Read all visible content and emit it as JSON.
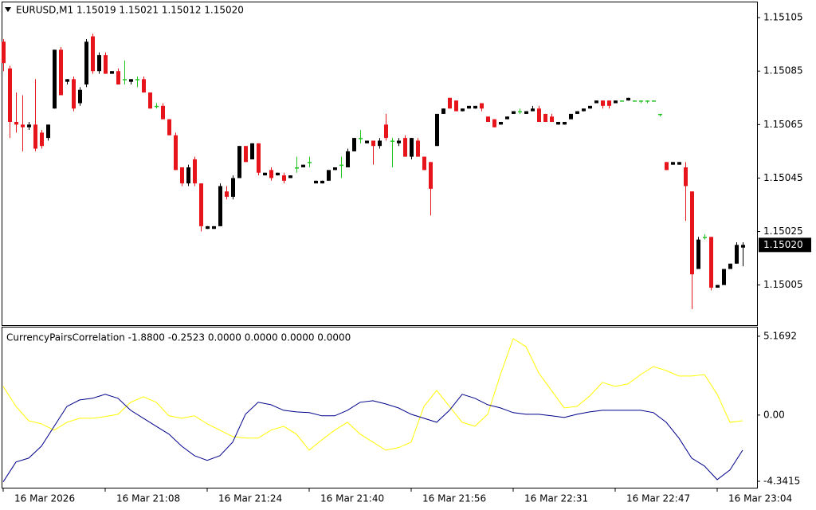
{
  "chart_data": [
    {
      "type": "candlestick",
      "title": "EURUSD,M1  1.15019 1.15021 1.15012 1.15020",
      "up_color": "#000000",
      "down_color": "#e8141c",
      "doji_color": "#22c322",
      "xlim": [
        -0.25,
        118.25
      ],
      "ylim": [
        1.1499,
        1.15111
      ],
      "yticks": [
        1.15105,
        1.15085,
        1.15065,
        1.15045,
        1.15025,
        1.15005
      ],
      "last_price": {
        "value": 1.1502,
        "label": "1.15020"
      },
      "open": [
        1.15096,
        1.15086,
        1.15066,
        1.15065,
        1.15064,
        1.15065,
        1.15062,
        1.1506,
        1.15071,
        1.15093,
        1.15081,
        1.15082,
        1.15073,
        1.1508,
        1.15098,
        1.15085,
        1.15091,
        1.15084,
        1.15085,
        1.15082,
        1.15081,
        1.15082,
        1.15082,
        1.15077,
        1.15072,
        1.15072,
        1.15067,
        1.15061,
        1.15049,
        1.15043,
        1.15052,
        1.15043,
        1.15026,
        1.15026,
        1.15027,
        1.1504,
        1.15038,
        1.15045,
        1.15057,
        1.15052,
        1.15058,
        1.15046,
        1.15048,
        1.15046,
        1.15046,
        1.15045,
        1.15049,
        1.15049,
        1.15051,
        1.15043,
        1.15043,
        1.15044,
        1.15048,
        1.1505,
        1.15049,
        1.15055,
        1.1506,
        1.15058,
        1.15059,
        1.15057,
        1.15065,
        1.15059,
        1.15058,
        1.1506,
        1.15053,
        1.15059,
        1.15053,
        1.15051,
        1.15057,
        1.15069,
        1.15075,
        1.15074,
        1.1507,
        1.15071,
        1.15071,
        1.15073,
        1.15068,
        1.15067,
        1.15065,
        1.15067,
        1.15069,
        1.1507,
        1.15069,
        1.1507,
        1.15071,
        1.15069,
        1.15068,
        1.15065,
        1.15065,
        1.15067,
        1.15069,
        1.1507,
        1.15071,
        1.15073,
        1.15074,
        1.15074,
        1.15073,
        1.15074,
        1.15074,
        1.15074,
        1.15074,
        1.15074,
        1.15074,
        1.15069,
        1.15051,
        1.1505,
        1.1505,
        1.15049,
        1.1504,
        1.15011,
        1.15023,
        1.15023,
        1.15004,
        1.15005,
        1.15011,
        1.15013,
        1.15019
      ],
      "high": [
        1.15097,
        1.15087,
        1.15077,
        1.15076,
        1.15066,
        1.15082,
        1.15063,
        1.15065,
        1.15093,
        1.15094,
        1.15082,
        1.15083,
        1.15079,
        1.15097,
        1.15099,
        1.15092,
        1.15092,
        1.15085,
        1.15086,
        1.15089,
        1.15082,
        1.15083,
        1.15083,
        1.15077,
        1.15073,
        1.15073,
        1.15067,
        1.15062,
        1.15049,
        1.1505,
        1.15053,
        1.15043,
        1.15027,
        1.15027,
        1.15043,
        1.15042,
        1.15046,
        1.15057,
        1.15057,
        1.15058,
        1.15058,
        1.15047,
        1.15049,
        1.15047,
        1.15047,
        1.15046,
        1.15053,
        1.1505,
        1.15053,
        1.15044,
        1.15044,
        1.15048,
        1.15049,
        1.15053,
        1.15056,
        1.1506,
        1.15063,
        1.15059,
        1.15059,
        1.1506,
        1.15069,
        1.1506,
        1.1506,
        1.15061,
        1.1506,
        1.1506,
        1.15053,
        1.15051,
        1.15069,
        1.15071,
        1.15075,
        1.15074,
        1.15071,
        1.15072,
        1.15072,
        1.15073,
        1.15068,
        1.15067,
        1.15066,
        1.15068,
        1.1507,
        1.15071,
        1.1507,
        1.15072,
        1.15072,
        1.15069,
        1.15069,
        1.15066,
        1.15066,
        1.15069,
        1.1507,
        1.15071,
        1.15072,
        1.15074,
        1.15074,
        1.15074,
        1.15074,
        1.15074,
        1.15075,
        1.15074,
        1.15074,
        1.15074,
        1.15074,
        1.15069,
        1.15051,
        1.15051,
        1.15051,
        1.15051,
        1.1504,
        1.15023,
        1.15024,
        1.15023,
        1.15005,
        1.15011,
        1.15013,
        1.15021,
        1.15021
      ],
      "low": [
        1.15085,
        1.1506,
        1.15062,
        1.15055,
        1.15063,
        1.15055,
        1.15056,
        1.15059,
        1.15071,
        1.15076,
        1.1508,
        1.1507,
        1.15072,
        1.15079,
        1.15084,
        1.15084,
        1.15084,
        1.15084,
        1.1508,
        1.1508,
        1.1508,
        1.15079,
        1.15077,
        1.15071,
        1.15071,
        1.15067,
        1.15061,
        1.15048,
        1.15042,
        1.15042,
        1.15042,
        1.15025,
        1.15026,
        1.15026,
        1.15027,
        1.15037,
        1.15037,
        1.15045,
        1.15051,
        1.15052,
        1.15046,
        1.15046,
        1.15044,
        1.15046,
        1.15043,
        1.15045,
        1.15047,
        1.15049,
        1.15049,
        1.15043,
        1.15043,
        1.15044,
        1.15048,
        1.15045,
        1.15049,
        1.15055,
        1.15058,
        1.15058,
        1.1505,
        1.15056,
        1.15059,
        1.15049,
        1.15057,
        1.15053,
        1.15052,
        1.15053,
        1.15048,
        1.15031,
        1.15057,
        1.15069,
        1.15071,
        1.1507,
        1.1507,
        1.15071,
        1.15071,
        1.1507,
        1.15066,
        1.15064,
        1.15065,
        1.15067,
        1.15069,
        1.15069,
        1.15069,
        1.1507,
        1.15066,
        1.15066,
        1.15066,
        1.15065,
        1.15065,
        1.15067,
        1.15069,
        1.1507,
        1.15071,
        1.15073,
        1.15071,
        1.15071,
        1.15073,
        1.15074,
        1.15074,
        1.15074,
        1.15073,
        1.15073,
        1.15074,
        1.15068,
        1.15048,
        1.1505,
        1.1505,
        1.15029,
        1.14996,
        1.15011,
        1.15022,
        1.15003,
        1.15004,
        1.15005,
        1.15011,
        1.15013,
        1.15012
      ],
      "close": [
        1.15088,
        1.15066,
        1.15065,
        1.15064,
        1.15065,
        1.15056,
        1.15057,
        1.15065,
        1.15093,
        1.15076,
        1.15082,
        1.15071,
        1.15078,
        1.15096,
        1.15085,
        1.15091,
        1.15084,
        1.15085,
        1.1508,
        1.15082,
        1.15082,
        1.15082,
        1.15077,
        1.15071,
        1.15072,
        1.15067,
        1.15061,
        1.15048,
        1.15043,
        1.15049,
        1.15043,
        1.15027,
        1.15027,
        1.15027,
        1.15042,
        1.15038,
        1.15045,
        1.15057,
        1.15051,
        1.15058,
        1.15047,
        1.15047,
        1.15045,
        1.15047,
        1.15044,
        1.15046,
        1.15049,
        1.1505,
        1.15051,
        1.15044,
        1.15044,
        1.15048,
        1.15049,
        1.1505,
        1.15055,
        1.1506,
        1.1506,
        1.15059,
        1.15057,
        1.15059,
        1.1506,
        1.15059,
        1.15059,
        1.15053,
        1.1506,
        1.15053,
        1.15048,
        1.15041,
        1.15069,
        1.15071,
        1.15071,
        1.1507,
        1.15071,
        1.15072,
        1.15072,
        1.15071,
        1.15066,
        1.15064,
        1.15066,
        1.15068,
        1.1507,
        1.1507,
        1.1507,
        1.15071,
        1.15066,
        1.15066,
        1.15066,
        1.15066,
        1.15066,
        1.15069,
        1.1507,
        1.15071,
        1.15072,
        1.15074,
        1.15072,
        1.15072,
        1.15074,
        1.15074,
        1.15075,
        1.15074,
        1.15074,
        1.15074,
        1.15074,
        1.15069,
        1.15048,
        1.15051,
        1.15051,
        1.15042,
        1.15009,
        1.15022,
        1.15023,
        1.15004,
        1.15005,
        1.15011,
        1.15013,
        1.1502,
        1.1502
      ]
    },
    {
      "type": "line",
      "title": "CurrencyPairsCorrelation -1.8800 -0.2523 0.0000 0.0000 0.0000 0.0000",
      "xlim": [
        -0.25,
        118.25
      ],
      "ylim": [
        -4.76,
        5.74
      ],
      "yticks": [
        5.1692,
        {
          "value": 0,
          "label": "0.00"
        },
        -4.3415
      ],
      "xticks": [
        {
          "value": 0,
          "label": "16 Mar 2026"
        },
        {
          "value": 16,
          "label": "16 Mar 21:08"
        },
        {
          "value": 32,
          "label": "16 Mar 21:24"
        },
        {
          "value": 48,
          "label": "16 Mar 21:40"
        },
        {
          "value": 64,
          "label": "16 Mar 21:56"
        },
        {
          "value": 80,
          "label": "16 Mar 22:31"
        },
        {
          "value": 96,
          "label": "16 Mar 22:47"
        },
        {
          "value": 112,
          "label": "16 Mar 23:04"
        }
      ],
      "x": [
        0,
        2,
        4,
        6,
        8,
        10,
        12,
        14,
        16,
        18,
        20,
        22,
        24,
        26,
        28,
        30,
        32,
        34,
        36,
        38,
        40,
        42,
        44,
        46,
        48,
        50,
        52,
        54,
        56,
        58,
        60,
        62,
        64,
        66,
        68,
        70,
        72,
        74,
        76,
        78,
        80,
        82,
        84,
        86,
        88,
        90,
        92,
        94,
        96,
        98,
        100,
        102,
        104,
        106,
        108,
        110,
        112,
        114,
        116
      ],
      "series": [
        {
          "color": "#ffff00",
          "values": [
            1.88,
            0.57,
            -0.37,
            -0.57,
            -0.99,
            -0.47,
            -0.21,
            -0.21,
            -0.1,
            0.05,
            0.84,
            1.2,
            0.84,
            -0.05,
            -0.21,
            -0.05,
            -0.57,
            -0.99,
            -1.41,
            -1.51,
            -1.51,
            -0.99,
            -0.73,
            -1.25,
            -2.3,
            -1.62,
            -0.99,
            -0.47,
            -1.25,
            -1.77,
            -2.3,
            -2.14,
            -1.77,
            0.57,
            1.62,
            0.57,
            -0.47,
            -0.73,
            0.05,
            2.66,
            5.01,
            4.49,
            2.77,
            1.62,
            0.47,
            0.57,
            1.25,
            2.14,
            1.88,
            2.04,
            2.66,
            3.18,
            2.92,
            2.56,
            2.56,
            2.66,
            1.36,
            -0.47,
            -0.37
          ]
        },
        {
          "color": "#00008b",
          "values": [
            -4.38,
            -3.08,
            -2.82,
            -2.04,
            -0.73,
            0.57,
            0.99,
            1.1,
            1.36,
            1.1,
            0.31,
            -0.21,
            -0.73,
            -1.25,
            -2.04,
            -2.66,
            -2.97,
            -2.66,
            -1.77,
            0.05,
            0.84,
            0.68,
            0.31,
            0.21,
            0.16,
            -0.05,
            -0.05,
            0.31,
            0.84,
            0.94,
            0.73,
            0.47,
            0.05,
            -0.21,
            -0.47,
            0.31,
            1.36,
            1.1,
            0.68,
            0.47,
            0.16,
            0.05,
            0.05,
            -0.05,
            -0.16,
            0.05,
            0.21,
            0.31,
            0.31,
            0.31,
            0.31,
            0.16,
            -0.47,
            -1.51,
            -2.82,
            -3.34,
            -4.23,
            -3.6,
            -2.3
          ]
        }
      ]
    }
  ]
}
